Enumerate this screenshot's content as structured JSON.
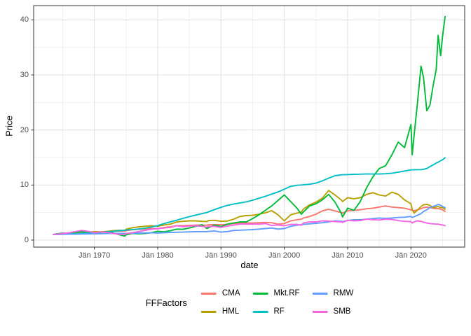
{
  "figure": {
    "y_axis": {
      "title": "Price",
      "tick_labels": [
        "0",
        "10",
        "20",
        "30",
        "40"
      ]
    },
    "x_axis": {
      "title": "date",
      "tick_labels": [
        "Jän 1970",
        "Jän 1980",
        "Jän 1990",
        "Jän 2000",
        "Jän 2010",
        "Jän 2020"
      ]
    },
    "legend": {
      "title": "FFFactors",
      "entries": [
        "CMA",
        "HML",
        "Mkt.RF",
        "RF",
        "RMW",
        "SMB"
      ]
    }
  },
  "style": {
    "panel_border_color": "#333333",
    "grid_major_color": "#e3e3e3",
    "grid_minor_color": "#f0f0f0",
    "tick_mark_color": "#333333",
    "tick_text_color": "#4d4d4d"
  },
  "chart_data": {
    "type": "line",
    "title": "",
    "xlabel": "date",
    "ylabel": "Price",
    "legend_title": "FFFactors",
    "legend_position": "bottom",
    "grid": true,
    "ylim": [
      0,
      40
    ],
    "y_ticks": [
      0,
      10,
      20,
      30,
      40
    ],
    "x_tick_years": [
      1970,
      1980,
      1990,
      2000,
      2010,
      2020
    ],
    "x_tick_labels": [
      "Jän 1970",
      "Jän 1980",
      "Jän 1990",
      "Jän 2000",
      "Jän 2010",
      "Jän 2020"
    ],
    "x": [
      1963.5,
      1964,
      1965,
      1966,
      1967,
      1968,
      1969,
      1970,
      1971,
      1972,
      1973,
      1974,
      1974.8,
      1975,
      1976,
      1977,
      1978,
      1979,
      1980,
      1981,
      1982,
      1983,
      1984,
      1985,
      1986,
      1987,
      1987.8,
      1988,
      1989,
      1990,
      1991,
      1992,
      1993,
      1994,
      1995,
      1996,
      1997,
      1998,
      1999,
      2000,
      2001,
      2002,
      2002.7,
      2003,
      2004,
      2005,
      2006,
      2007,
      2008,
      2009,
      2009.2,
      2010,
      2011,
      2012,
      2013,
      2014,
      2015,
      2016,
      2017,
      2018,
      2019,
      2020,
      2020.2,
      2020.5,
      2021,
      2021.6,
      2022,
      2022.5,
      2023,
      2023.5,
      2024,
      2024.3,
      2024.7,
      2025,
      2025.4
    ],
    "series": [
      {
        "name": "CMA",
        "color": "#F8766D",
        "values": [
          1.0,
          1.04,
          1.1,
          1.12,
          1.22,
          1.32,
          1.3,
          1.38,
          1.42,
          1.45,
          1.56,
          1.62,
          1.63,
          1.72,
          1.88,
          1.97,
          2.02,
          2.1,
          2.05,
          2.3,
          2.4,
          2.62,
          2.62,
          2.68,
          2.72,
          2.72,
          2.7,
          2.78,
          2.82,
          2.78,
          2.85,
          3.0,
          3.1,
          3.1,
          3.1,
          3.15,
          3.2,
          3.15,
          2.9,
          3.0,
          3.5,
          3.7,
          3.8,
          4.0,
          4.3,
          4.7,
          5.3,
          5.6,
          5.3,
          5.0,
          4.9,
          5.3,
          5.4,
          5.5,
          5.7,
          5.8,
          6.0,
          6.2,
          6.0,
          5.9,
          5.8,
          5.5,
          5.4,
          5.3,
          5.5,
          5.7,
          5.9,
          6.0,
          5.9,
          5.8,
          5.7,
          5.75,
          5.6,
          5.5,
          5.2
        ]
      },
      {
        "name": "HML",
        "color": "#B79F00",
        "values": [
          1.0,
          1.08,
          1.18,
          1.17,
          1.35,
          1.52,
          1.45,
          1.52,
          1.5,
          1.58,
          1.72,
          1.78,
          1.75,
          1.95,
          2.25,
          2.4,
          2.5,
          2.6,
          2.5,
          2.75,
          2.9,
          3.3,
          3.4,
          3.5,
          3.5,
          3.4,
          3.35,
          3.55,
          3.6,
          3.4,
          3.45,
          3.8,
          4.3,
          4.45,
          4.5,
          4.7,
          4.95,
          5.35,
          4.6,
          3.5,
          4.6,
          4.9,
          5.1,
          5.6,
          6.4,
          6.9,
          7.6,
          9.0,
          8.2,
          7.3,
          7.0,
          7.7,
          7.5,
          7.7,
          8.3,
          8.6,
          8.2,
          8.0,
          8.7,
          8.3,
          7.3,
          6.6,
          5.6,
          4.9,
          5.4,
          6.1,
          6.4,
          6.5,
          6.3,
          5.9,
          6.0,
          6.1,
          5.9,
          5.9,
          5.6
        ]
      },
      {
        "name": "Mkt.RF",
        "color": "#00BA38",
        "values": [
          1.0,
          1.12,
          1.28,
          1.18,
          1.42,
          1.52,
          1.35,
          1.25,
          1.42,
          1.55,
          1.28,
          0.95,
          0.72,
          0.95,
          1.2,
          1.15,
          1.2,
          1.35,
          1.6,
          1.5,
          1.7,
          2.0,
          1.95,
          2.2,
          2.5,
          2.8,
          2.1,
          2.25,
          2.75,
          2.45,
          2.9,
          3.1,
          3.3,
          3.3,
          3.9,
          4.6,
          5.4,
          6.2,
          7.2,
          8.2,
          7.0,
          5.8,
          4.7,
          5.1,
          6.2,
          6.6,
          7.3,
          8.3,
          6.9,
          4.9,
          4.2,
          5.8,
          5.4,
          7.0,
          9.5,
          11.5,
          13.0,
          13.5,
          15.5,
          17.8,
          16.8,
          21.0,
          15.5,
          19.0,
          24.5,
          31.6,
          29.5,
          23.5,
          24.5,
          28.0,
          31.0,
          37.2,
          33.5,
          37.0,
          40.6
        ]
      },
      {
        "name": "RF",
        "color": "#00BFC4",
        "values": [
          1.0,
          1.02,
          1.06,
          1.1,
          1.15,
          1.21,
          1.28,
          1.37,
          1.43,
          1.49,
          1.59,
          1.71,
          1.78,
          1.82,
          1.91,
          2.01,
          2.15,
          2.37,
          2.63,
          3.0,
          3.32,
          3.61,
          3.95,
          4.26,
          4.54,
          4.8,
          5.02,
          5.12,
          5.55,
          5.95,
          6.3,
          6.55,
          6.75,
          6.95,
          7.25,
          7.6,
          7.95,
          8.35,
          8.75,
          9.25,
          9.75,
          9.95,
          10.0,
          10.05,
          10.15,
          10.35,
          10.75,
          11.25,
          11.7,
          11.85,
          11.87,
          11.9,
          11.95,
          11.97,
          12.0,
          12.0,
          12.0,
          12.05,
          12.15,
          12.35,
          12.55,
          12.75,
          12.77,
          12.78,
          12.79,
          12.8,
          12.85,
          13.0,
          13.35,
          13.65,
          14.0,
          14.15,
          14.4,
          14.6,
          14.95
        ]
      },
      {
        "name": "RMW",
        "color": "#619CFF",
        "values": [
          1.0,
          1.02,
          1.05,
          1.06,
          1.06,
          1.1,
          1.12,
          1.15,
          1.15,
          1.2,
          1.22,
          1.22,
          1.2,
          1.22,
          1.25,
          1.28,
          1.3,
          1.32,
          1.28,
          1.35,
          1.4,
          1.42,
          1.45,
          1.5,
          1.52,
          1.55,
          1.52,
          1.58,
          1.65,
          1.45,
          1.55,
          1.75,
          1.8,
          1.85,
          1.9,
          2.0,
          2.1,
          2.2,
          2.0,
          2.1,
          2.5,
          2.7,
          2.8,
          2.85,
          2.95,
          3.05,
          3.15,
          3.3,
          3.5,
          3.4,
          3.35,
          3.55,
          3.7,
          3.7,
          3.8,
          3.9,
          4.0,
          3.95,
          4.0,
          4.1,
          4.15,
          4.3,
          4.1,
          4.25,
          4.5,
          4.8,
          5.2,
          5.5,
          5.9,
          6.1,
          6.3,
          6.5,
          6.3,
          6.1,
          5.9
        ]
      },
      {
        "name": "SMB",
        "color": "#F564E2",
        "values": [
          1.0,
          1.05,
          1.2,
          1.32,
          1.55,
          1.75,
          1.6,
          1.35,
          1.48,
          1.42,
          1.18,
          1.05,
          1.0,
          1.18,
          1.35,
          1.55,
          1.75,
          1.98,
          2.1,
          2.2,
          2.3,
          2.6,
          2.42,
          2.55,
          2.6,
          2.5,
          2.35,
          2.5,
          2.48,
          2.3,
          2.55,
          2.7,
          2.9,
          2.92,
          2.9,
          2.9,
          3.0,
          2.65,
          2.75,
          2.6,
          2.85,
          2.85,
          2.7,
          3.1,
          3.3,
          3.3,
          3.5,
          3.45,
          3.35,
          3.3,
          3.2,
          3.6,
          3.5,
          3.55,
          3.8,
          3.7,
          3.65,
          3.8,
          3.75,
          3.55,
          3.4,
          3.35,
          3.1,
          3.3,
          3.5,
          3.4,
          3.25,
          3.1,
          3.0,
          2.95,
          2.9,
          2.9,
          2.8,
          2.75,
          2.6
        ]
      }
    ]
  }
}
